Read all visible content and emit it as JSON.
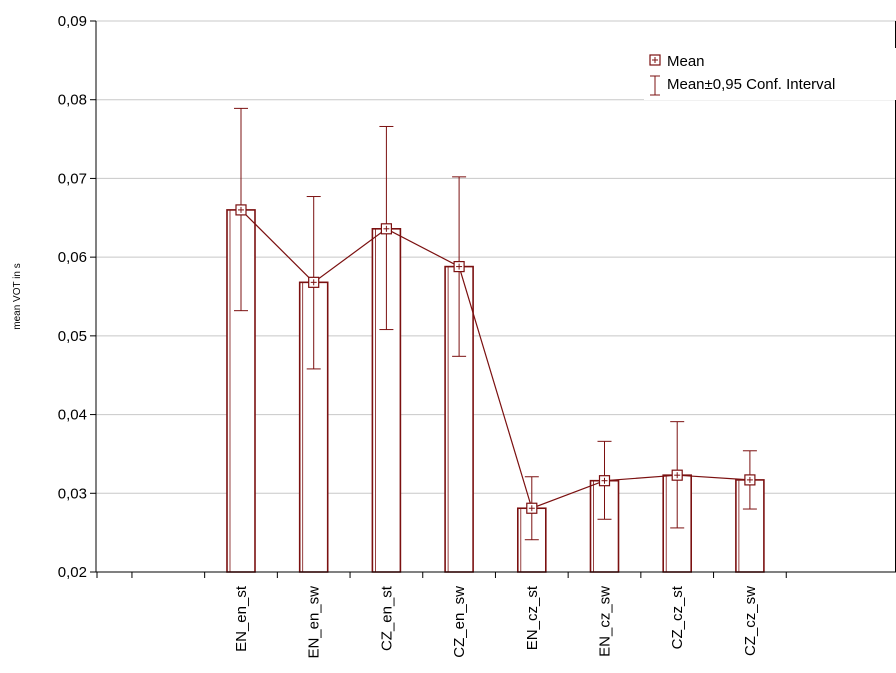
{
  "chart_data": {
    "type": "bar",
    "title": "",
    "xlabel": "",
    "ylabel": "mean VOT in s",
    "categories": [
      "EN_en_st",
      "EN_en_sw",
      "CZ_en_st",
      "CZ_en_sw",
      "EN_cz_st",
      "EN_cz_sw",
      "CZ_cz_st",
      "CZ_cz_sw"
    ],
    "series": [
      {
        "name": "Mean",
        "values": [
          0.066,
          0.0568,
          0.0636,
          0.0588,
          0.0281,
          0.0316,
          0.0323,
          0.0317
        ],
        "ci_low": [
          0.0532,
          0.0458,
          0.0508,
          0.0474,
          0.0241,
          0.0267,
          0.0256,
          0.028
        ],
        "ci_high": [
          0.0789,
          0.0677,
          0.0766,
          0.0702,
          0.0321,
          0.0366,
          0.0391,
          0.0354
        ]
      }
    ],
    "ylim": [
      0.02,
      0.09
    ],
    "yticks": [
      "0,02",
      "0,03",
      "0,04",
      "0,05",
      "0,06",
      "0,07",
      "0,08",
      "0,09"
    ],
    "grid": true,
    "legend": {
      "placement": "top-right",
      "entries": [
        "Mean",
        "Mean±0,95 Conf. Interval"
      ]
    },
    "colors": {
      "series": "#7b1010",
      "grid": "#c8c8c8",
      "axis": "#000000"
    }
  }
}
